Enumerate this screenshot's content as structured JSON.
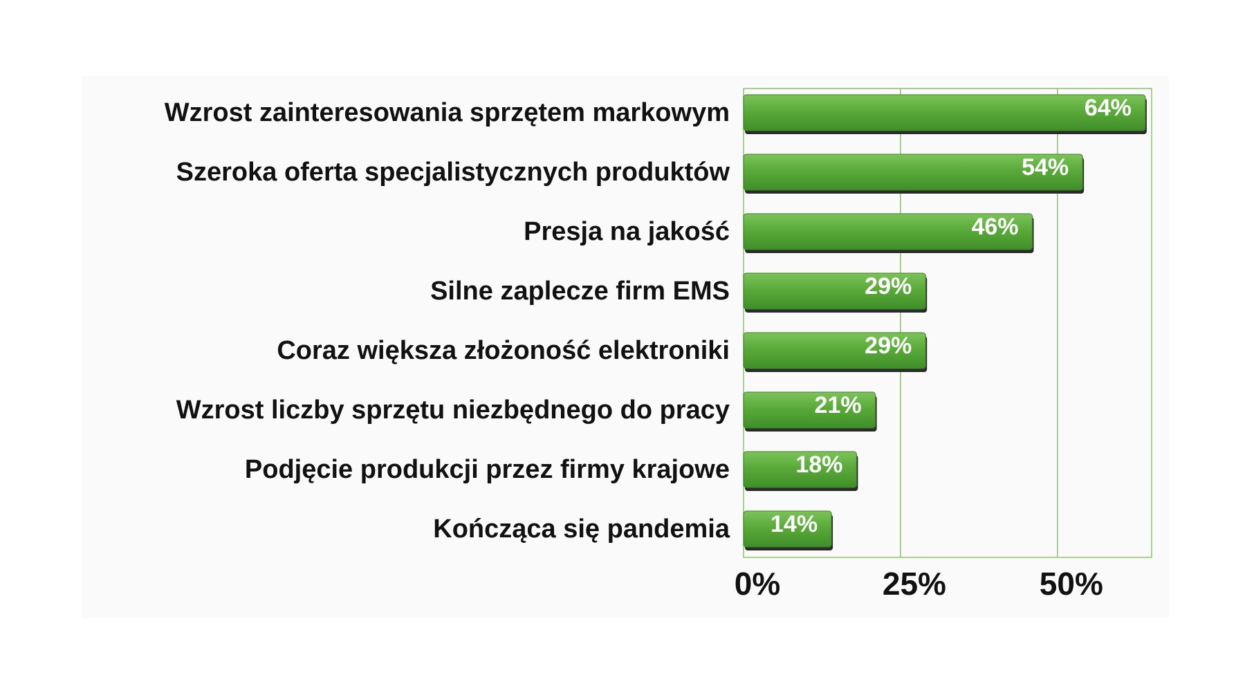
{
  "chart_data": {
    "type": "bar",
    "orientation": "horizontal",
    "categories": [
      "Wzrost zainteresowania sprzętem markowym",
      "Szeroka oferta specjalistycznych produktów",
      "Presja na jakość",
      "Silne zaplecze firm EMS",
      "Coraz większa złożoność elektroniki",
      "Wzrost liczby sprzętu niezbędnego do pracy",
      "Podjęcie produkcji przez firmy krajowe",
      "Kończąca się pandemia"
    ],
    "values": [
      64,
      54,
      46,
      29,
      29,
      21,
      18,
      14
    ],
    "value_labels": [
      "64%",
      "54%",
      "46%",
      "29%",
      "29%",
      "21%",
      "18%",
      "14%"
    ],
    "xlim": [
      0,
      65
    ],
    "xticks": [
      0,
      25,
      50
    ],
    "xtick_labels": [
      "0%",
      "25%",
      "50%"
    ],
    "grid": true,
    "colors": {
      "bar": "#5aaa3a",
      "bar_highlight": "#7cc35a",
      "bar_shadow": "#2b2b2b",
      "grid": "#8cc46a",
      "panel": "#fafafa",
      "label_text": "#111111",
      "value_text": "#ffffff"
    }
  }
}
